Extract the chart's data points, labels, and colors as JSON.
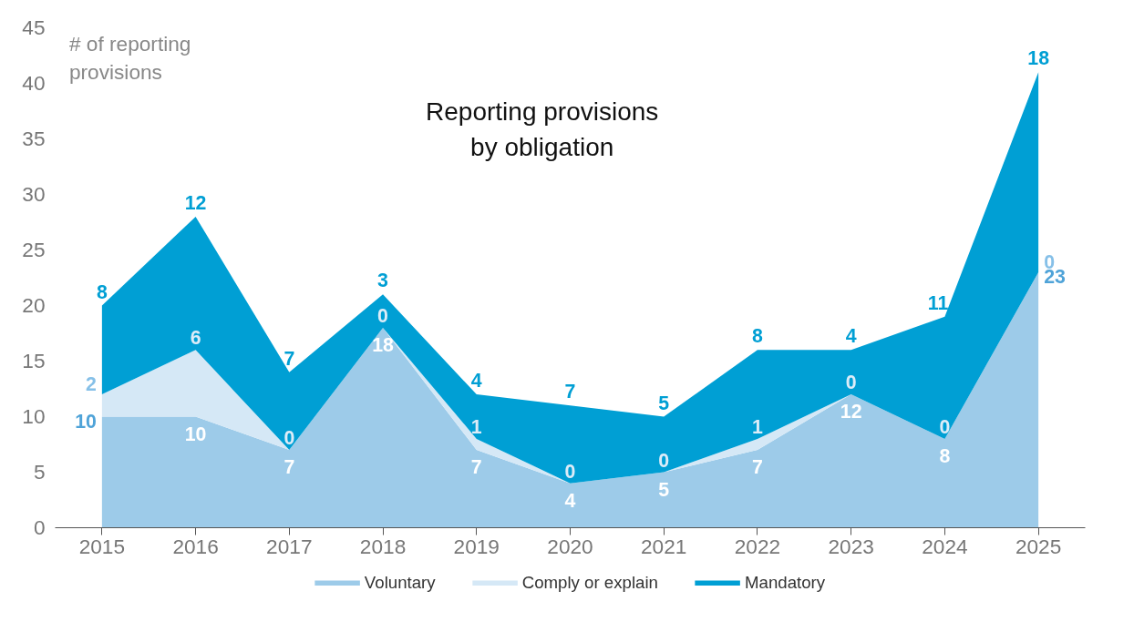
{
  "chart_data": {
    "type": "area",
    "stacked": true,
    "title": "Reporting provisions\nby obligation",
    "ylabel": "# of reporting\nprovisions",
    "categories": [
      "2015",
      "2016",
      "2017",
      "2018",
      "2019",
      "2020",
      "2021",
      "2022",
      "2023",
      "2024",
      "2025"
    ],
    "series": [
      {
        "name": "Voluntary",
        "color": "#9dcbe9",
        "values": [
          10,
          10,
          7,
          18,
          7,
          4,
          5,
          7,
          12,
          8,
          23
        ]
      },
      {
        "name": "Comply or explain",
        "color": "#d5e8f6",
        "values": [
          2,
          6,
          0,
          0,
          1,
          0,
          0,
          1,
          0,
          0,
          0
        ]
      },
      {
        "name": "Mandatory",
        "color": "#009fd4",
        "values": [
          8,
          12,
          7,
          3,
          4,
          7,
          5,
          8,
          4,
          11,
          18
        ]
      }
    ],
    "ylim": [
      0,
      45
    ],
    "yticks": [
      0,
      5,
      10,
      15,
      20,
      25,
      30,
      35,
      40,
      45
    ],
    "data_labels": true,
    "legend": "bottom",
    "grid": false
  }
}
